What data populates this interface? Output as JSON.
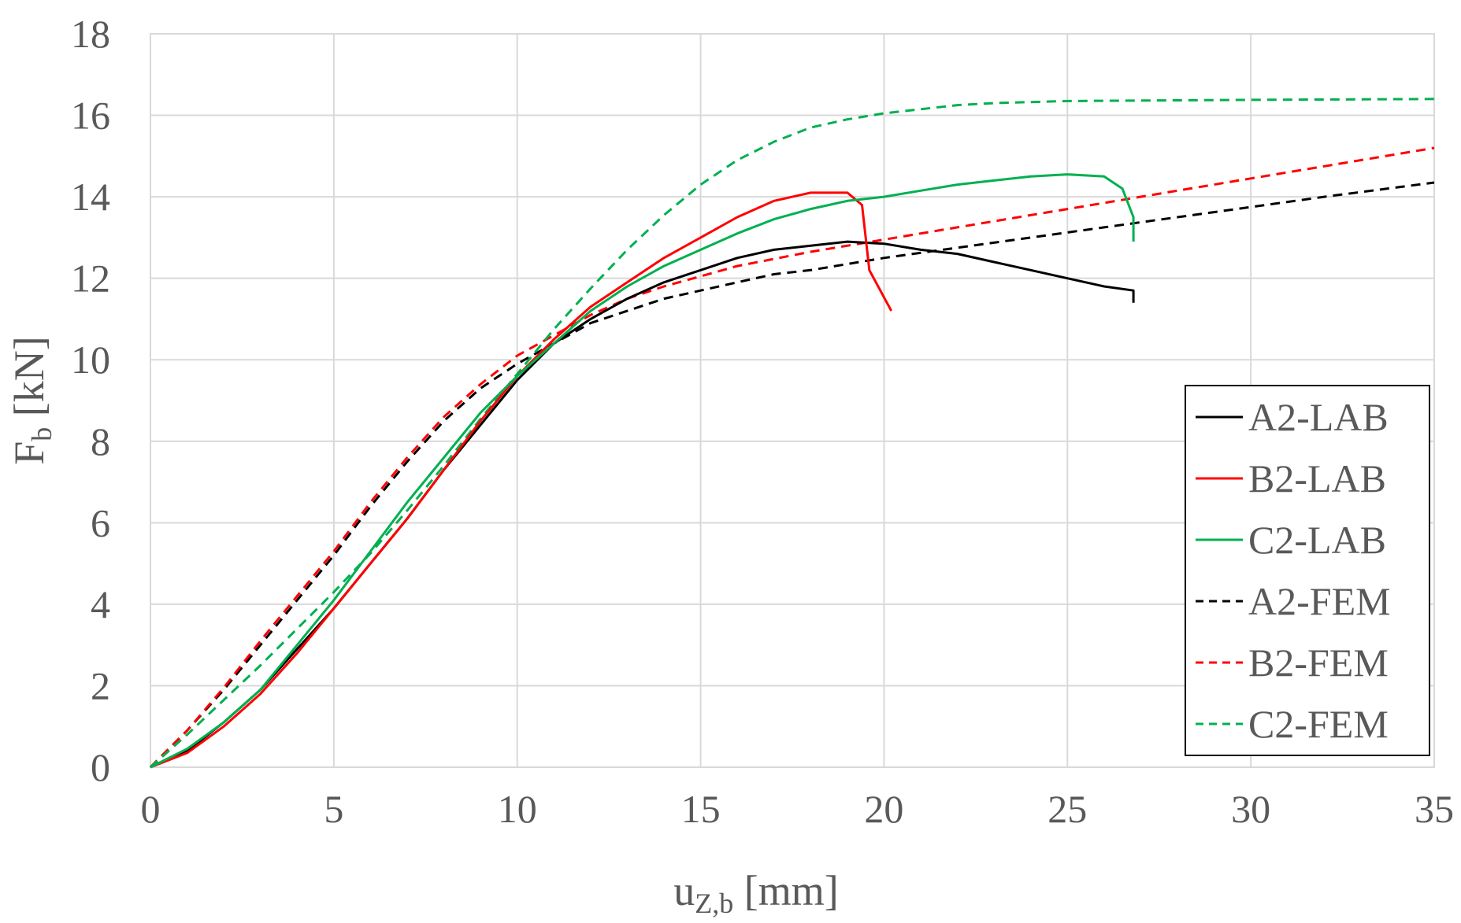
{
  "chart_data": {
    "type": "line",
    "title": "",
    "xlabel": "u",
    "xlabel_sub": "Z,b",
    "xlabel_unit": " [mm]",
    "ylabel": "F",
    "ylabel_sub": "b",
    "ylabel_unit": " [kN]",
    "xlim": [
      0,
      35
    ],
    "ylim": [
      0,
      18
    ],
    "xticks": [
      0,
      5,
      10,
      15,
      20,
      25,
      30,
      35
    ],
    "yticks": [
      0,
      2,
      4,
      6,
      8,
      10,
      12,
      14,
      16,
      18
    ],
    "grid": true,
    "legend_position": "bottom-right",
    "series": [
      {
        "name": "A2-LAB",
        "color": "#000000",
        "style": "solid",
        "x": [
          0,
          1,
          2,
          3,
          4,
          5,
          6,
          7,
          8,
          9,
          10,
          11,
          12,
          13,
          14,
          15,
          16,
          17,
          18,
          19,
          20,
          21,
          22,
          23,
          24,
          25,
          26,
          26.8,
          26.8
        ],
        "y": [
          0,
          0.4,
          1.1,
          1.9,
          2.9,
          3.9,
          5.0,
          6.1,
          7.3,
          8.4,
          9.5,
          10.4,
          11.0,
          11.5,
          11.9,
          12.2,
          12.5,
          12.7,
          12.8,
          12.9,
          12.85,
          12.7,
          12.6,
          12.4,
          12.2,
          12.0,
          11.8,
          11.7,
          11.4
        ]
      },
      {
        "name": "B2-LAB",
        "color": "#ff0000",
        "style": "solid",
        "x": [
          0,
          1,
          2,
          3,
          4,
          5,
          6,
          7,
          8,
          9,
          10,
          11,
          12,
          13,
          14,
          15,
          16,
          17,
          18,
          19,
          19.4,
          19.6,
          20.2
        ],
        "y": [
          0,
          0.35,
          1.0,
          1.8,
          2.8,
          3.9,
          5.0,
          6.1,
          7.3,
          8.5,
          9.6,
          10.5,
          11.3,
          11.9,
          12.5,
          13.0,
          13.5,
          13.9,
          14.1,
          14.1,
          13.8,
          12.2,
          11.2
        ]
      },
      {
        "name": "C2-LAB",
        "color": "#00b050",
        "style": "solid",
        "x": [
          0,
          1,
          2,
          3,
          4,
          5,
          6,
          7,
          8,
          9,
          10,
          11,
          12,
          13,
          14,
          15,
          16,
          17,
          18,
          19,
          20,
          21,
          22,
          23,
          24,
          25,
          26,
          26.5,
          26.8,
          26.8
        ],
        "y": [
          0,
          0.45,
          1.1,
          1.9,
          3.0,
          4.1,
          5.3,
          6.5,
          7.6,
          8.7,
          9.6,
          10.4,
          11.2,
          11.8,
          12.3,
          12.7,
          13.1,
          13.45,
          13.7,
          13.9,
          14.0,
          14.15,
          14.3,
          14.4,
          14.5,
          14.55,
          14.5,
          14.2,
          13.5,
          12.9
        ]
      },
      {
        "name": "A2-FEM",
        "color": "#000000",
        "style": "dashed",
        "x": [
          0,
          1,
          2,
          3,
          4,
          5,
          6,
          7,
          8,
          9,
          10,
          11,
          12,
          13,
          14,
          15,
          16,
          17,
          18,
          20,
          22,
          24,
          26,
          28,
          30,
          32,
          35
        ],
        "y": [
          0,
          0.9,
          1.9,
          3.0,
          4.1,
          5.2,
          6.4,
          7.5,
          8.5,
          9.3,
          9.9,
          10.4,
          10.9,
          11.2,
          11.5,
          11.7,
          11.9,
          12.1,
          12.2,
          12.5,
          12.75,
          13.0,
          13.25,
          13.5,
          13.75,
          14.0,
          14.35
        ]
      },
      {
        "name": "B2-FEM",
        "color": "#ff0000",
        "style": "dashed",
        "x": [
          0,
          1,
          2,
          3,
          4,
          5,
          6,
          7,
          8,
          9,
          10,
          11,
          12,
          13,
          14,
          15,
          16,
          18,
          20,
          22,
          24,
          26,
          28,
          30,
          32,
          35
        ],
        "y": [
          0,
          0.9,
          1.95,
          3.1,
          4.2,
          5.3,
          6.5,
          7.6,
          8.6,
          9.4,
          10.1,
          10.6,
          11.1,
          11.5,
          11.8,
          12.05,
          12.3,
          12.65,
          12.95,
          13.25,
          13.55,
          13.85,
          14.15,
          14.45,
          14.75,
          15.2
        ]
      },
      {
        "name": "C2-FEM",
        "color": "#00b050",
        "style": "dashed",
        "x": [
          0,
          1,
          2,
          3,
          4,
          5,
          6,
          7,
          8,
          9,
          10,
          11,
          12,
          13,
          14,
          15,
          16,
          17,
          18,
          19,
          20,
          21,
          22,
          23,
          25,
          30,
          35
        ],
        "y": [
          0,
          0.8,
          1.65,
          2.5,
          3.4,
          4.3,
          5.25,
          6.3,
          7.4,
          8.55,
          9.65,
          10.75,
          11.75,
          12.7,
          13.55,
          14.3,
          14.9,
          15.35,
          15.7,
          15.9,
          16.05,
          16.15,
          16.25,
          16.3,
          16.35,
          16.38,
          16.4
        ]
      }
    ]
  }
}
